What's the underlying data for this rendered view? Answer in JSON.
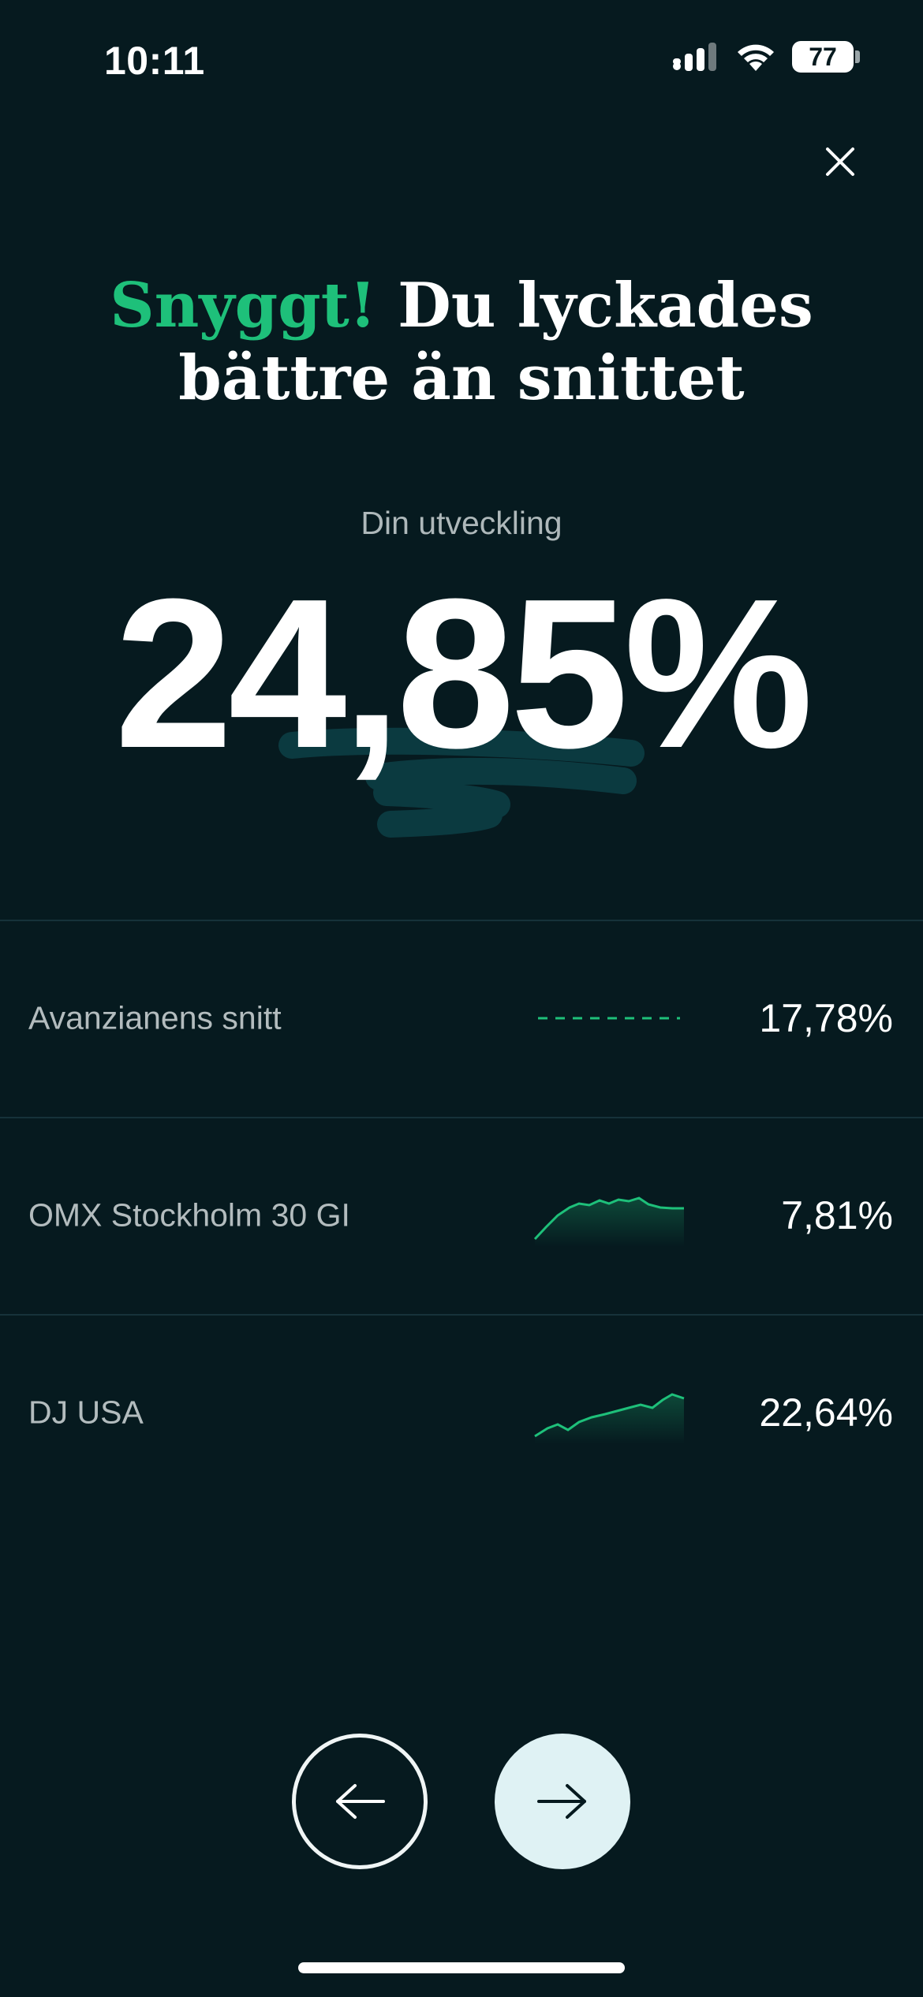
{
  "status_bar": {
    "time": "10:11",
    "battery": "77"
  },
  "header": {
    "close_icon": "close-icon"
  },
  "headline": {
    "accent": "Snyggt!",
    "rest_line1": " Du lyckades",
    "line2": "bättre än snittet"
  },
  "metric": {
    "label": "Din utveckling",
    "value": "24,85%"
  },
  "comparisons": [
    {
      "name": "Avanzianens snitt",
      "value": "17,78%",
      "chart": "dashed-line"
    },
    {
      "name": "OMX Stockholm 30 GI",
      "value": "7,81%",
      "chart": "sparkline"
    },
    {
      "name": "DJ USA",
      "value": "22,64%",
      "chart": "sparkline"
    }
  ],
  "navigation": {
    "prev_icon": "arrow-left-icon",
    "next_icon": "arrow-right-icon"
  },
  "colors": {
    "background": "#061a1f",
    "accent": "#1ec07a",
    "scribble": "#0b3a40",
    "next_button": "#dff2f4"
  }
}
